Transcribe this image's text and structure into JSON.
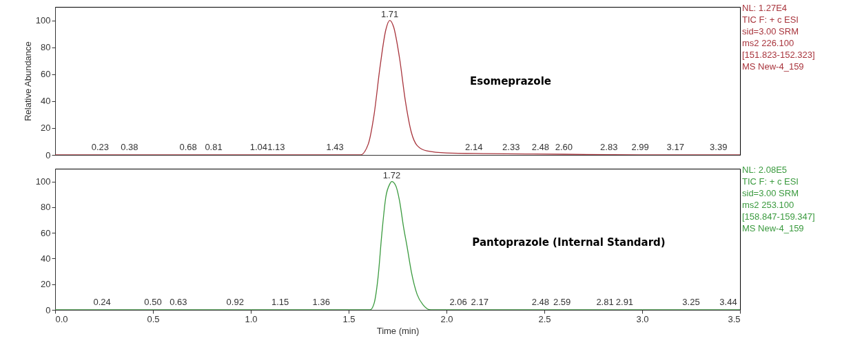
{
  "chart_data": [
    {
      "type": "line",
      "title": "Esomeprazole",
      "ylabel": "Relative Abundance",
      "xlim": [
        0,
        3.5
      ],
      "ylim": [
        0,
        110
      ],
      "yticks": [
        0,
        20,
        40,
        60,
        80,
        100
      ],
      "tick_labels": "y",
      "series": [
        {
          "color": "#a8343c",
          "x": [
            0,
            0.5,
            1.0,
            1.5,
            1.56,
            1.6,
            1.63,
            1.66,
            1.69,
            1.71,
            1.73,
            1.76,
            1.79,
            1.82,
            1.85,
            1.9,
            2.0,
            2.2,
            2.6,
            3.0,
            3.5
          ],
          "values": [
            0,
            0,
            0,
            0,
            0,
            8,
            30,
            65,
            93,
            100,
            95,
            72,
            40,
            17,
            7,
            3,
            1.5,
            1,
            0.5,
            0,
            0
          ]
        }
      ],
      "annotations": [
        {
          "text": "1.71",
          "x": 1.71,
          "y": 100
        },
        {
          "text": "0.23",
          "x": 0.23,
          "y": 1
        },
        {
          "text": "0.38",
          "x": 0.38,
          "y": 1
        },
        {
          "text": "0.68",
          "x": 0.68,
          "y": 1
        },
        {
          "text": "0.81",
          "x": 0.81,
          "y": 1
        },
        {
          "text": "1.04",
          "x": 1.04,
          "y": 1
        },
        {
          "text": "1.13",
          "x": 1.13,
          "y": 1
        },
        {
          "text": "1.43",
          "x": 1.43,
          "y": 1
        },
        {
          "text": "2.14",
          "x": 2.14,
          "y": 1
        },
        {
          "text": "2.33",
          "x": 2.33,
          "y": 1
        },
        {
          "text": "2.48",
          "x": 2.48,
          "y": 1
        },
        {
          "text": "2.60",
          "x": 2.6,
          "y": 1
        },
        {
          "text": "2.83",
          "x": 2.83,
          "y": 1
        },
        {
          "text": "2.99",
          "x": 2.99,
          "y": 1
        },
        {
          "text": "3.17",
          "x": 3.17,
          "y": 1
        },
        {
          "text": "3.39",
          "x": 3.39,
          "y": 1
        },
        "NL: 1.27E4",
        "TIC F: + c ESI",
        "sid=3.00  SRM",
        "ms2 226.100",
        "[151.823-152.323]",
        " MS New-4_159"
      ]
    },
    {
      "type": "line",
      "title": "Pantoprazole (Internal Standard)",
      "xlabel": "Time (min)",
      "xlim": [
        0,
        3.5
      ],
      "ylim": [
        0,
        110
      ],
      "yticks": [
        0,
        20,
        40,
        60,
        80,
        100
      ],
      "xticks": [
        {
          "value": 0,
          "label": "0.0"
        },
        0.5,
        {
          "value": 1,
          "label": "1.0"
        },
        1.5,
        {
          "value": 2,
          "label": "2.0"
        },
        2.5,
        {
          "value": 3,
          "label": "3.0"
        },
        3.5
      ],
      "series": [
        {
          "color": "#3a9a3e",
          "x": [
            0,
            0.5,
            1.0,
            1.5,
            1.61,
            1.63,
            1.65,
            1.67,
            1.69,
            1.71,
            1.72,
            1.74,
            1.76,
            1.78,
            1.8,
            1.82,
            1.85,
            1.88,
            1.92,
            2.5,
            3.0,
            3.5
          ],
          "values": [
            0,
            0,
            0,
            0,
            0,
            5,
            25,
            60,
            88,
            98,
            100,
            97,
            85,
            65,
            48,
            30,
            12,
            4,
            0,
            0,
            0,
            0
          ]
        }
      ],
      "annotations": [
        {
          "text": "1.72",
          "x": 1.72,
          "y": 100
        },
        {
          "text": "0.24",
          "x": 0.24,
          "y": 1
        },
        {
          "text": "0.50",
          "x": 0.5,
          "y": 1
        },
        {
          "text": "0.63",
          "x": 0.63,
          "y": 1
        },
        {
          "text": "0.92",
          "x": 0.92,
          "y": 1
        },
        {
          "text": "1.15",
          "x": 1.15,
          "y": 1
        },
        {
          "text": "1.36",
          "x": 1.36,
          "y": 1
        },
        {
          "text": "2.06",
          "x": 2.06,
          "y": 1
        },
        {
          "text": "2.17",
          "x": 2.17,
          "y": 1
        },
        {
          "text": "2.48",
          "x": 2.48,
          "y": 1
        },
        {
          "text": "2.59",
          "x": 2.59,
          "y": 1
        },
        {
          "text": "2.81",
          "x": 2.81,
          "y": 1
        },
        {
          "text": "2.91",
          "x": 2.91,
          "y": 1
        },
        {
          "text": "3.25",
          "x": 3.25,
          "y": 1
        },
        {
          "text": "3.44",
          "x": 3.44,
          "y": 1
        },
        "NL: 2.08E5",
        "TIC F: + c ESI",
        "sid=3.00  SRM",
        "ms2 253.100",
        "[158.847-159.347]",
        " MS New-4_159"
      ]
    }
  ]
}
